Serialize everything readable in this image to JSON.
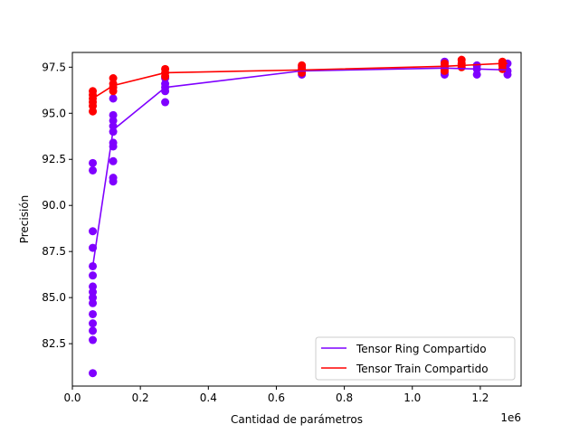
{
  "chart_data": {
    "type": "line",
    "xlabel": "Cantidad de parámetros",
    "ylabel": "Precisión",
    "x_offset_label": "1e6",
    "x_scale": 1000000,
    "xlim": [
      0,
      1320000
    ],
    "ylim": [
      80.2,
      98.3
    ],
    "x_ticks": [
      0,
      200000,
      400000,
      600000,
      800000,
      1000000,
      1200000
    ],
    "x_tick_labels": [
      "0.0",
      "0.2",
      "0.4",
      "0.6",
      "0.8",
      "1.0",
      "1.2"
    ],
    "y_ticks": [
      82.5,
      85.0,
      87.5,
      90.0,
      92.5,
      95.0,
      97.5
    ],
    "y_tick_labels": [
      "82.5",
      "85.0",
      "87.5",
      "90.0",
      "92.5",
      "95.0",
      "97.5"
    ],
    "grid": false,
    "legend_position": "lower-right",
    "series": [
      {
        "name": "Tensor Ring Compartido",
        "color": "#7f00ff",
        "line": [
          {
            "x": 60000,
            "y": 86.7
          },
          {
            "x": 120000,
            "y": 94.1
          },
          {
            "x": 273000,
            "y": 96.4
          },
          {
            "x": 675000,
            "y": 97.3
          },
          {
            "x": 1095000,
            "y": 97.45
          },
          {
            "x": 1190000,
            "y": 97.4
          },
          {
            "x": 1280000,
            "y": 97.35
          }
        ],
        "points": [
          {
            "x": 60000,
            "y": 92.3
          },
          {
            "x": 60000,
            "y": 91.9
          },
          {
            "x": 60000,
            "y": 88.6
          },
          {
            "x": 60000,
            "y": 87.7
          },
          {
            "x": 60000,
            "y": 86.7
          },
          {
            "x": 60000,
            "y": 86.2
          },
          {
            "x": 60000,
            "y": 85.6
          },
          {
            "x": 60000,
            "y": 85.3
          },
          {
            "x": 60000,
            "y": 85.0
          },
          {
            "x": 60000,
            "y": 84.7
          },
          {
            "x": 60000,
            "y": 84.1
          },
          {
            "x": 60000,
            "y": 83.6
          },
          {
            "x": 60000,
            "y": 83.2
          },
          {
            "x": 60000,
            "y": 82.7
          },
          {
            "x": 60000,
            "y": 80.9
          },
          {
            "x": 120000,
            "y": 95.8
          },
          {
            "x": 120000,
            "y": 94.9
          },
          {
            "x": 120000,
            "y": 94.6
          },
          {
            "x": 120000,
            "y": 94.3
          },
          {
            "x": 120000,
            "y": 94.0
          },
          {
            "x": 120000,
            "y": 93.4
          },
          {
            "x": 120000,
            "y": 93.2
          },
          {
            "x": 120000,
            "y": 92.4
          },
          {
            "x": 120000,
            "y": 91.5
          },
          {
            "x": 120000,
            "y": 91.3
          },
          {
            "x": 273000,
            "y": 96.9
          },
          {
            "x": 273000,
            "y": 96.6
          },
          {
            "x": 273000,
            "y": 96.4
          },
          {
            "x": 273000,
            "y": 96.2
          },
          {
            "x": 273000,
            "y": 95.6
          },
          {
            "x": 675000,
            "y": 97.5
          },
          {
            "x": 675000,
            "y": 97.3
          },
          {
            "x": 675000,
            "y": 97.1
          },
          {
            "x": 1095000,
            "y": 97.8
          },
          {
            "x": 1095000,
            "y": 97.6
          },
          {
            "x": 1095000,
            "y": 97.4
          },
          {
            "x": 1095000,
            "y": 97.2
          },
          {
            "x": 1095000,
            "y": 97.1
          },
          {
            "x": 1145000,
            "y": 97.6
          },
          {
            "x": 1190000,
            "y": 97.6
          },
          {
            "x": 1190000,
            "y": 97.4
          },
          {
            "x": 1190000,
            "y": 97.1
          },
          {
            "x": 1280000,
            "y": 97.7
          },
          {
            "x": 1280000,
            "y": 97.3
          },
          {
            "x": 1280000,
            "y": 97.1
          }
        ]
      },
      {
        "name": "Tensor Train Compartido",
        "color": "#ff0000",
        "line": [
          {
            "x": 60000,
            "y": 95.8
          },
          {
            "x": 120000,
            "y": 96.5
          },
          {
            "x": 273000,
            "y": 97.2
          },
          {
            "x": 675000,
            "y": 97.35
          },
          {
            "x": 1095000,
            "y": 97.55
          },
          {
            "x": 1265000,
            "y": 97.7
          },
          {
            "x": 1280000,
            "y": 97.7
          }
        ],
        "points": [
          {
            "x": 60000,
            "y": 96.2
          },
          {
            "x": 60000,
            "y": 96.0
          },
          {
            "x": 60000,
            "y": 95.8
          },
          {
            "x": 60000,
            "y": 95.6
          },
          {
            "x": 60000,
            "y": 95.4
          },
          {
            "x": 60000,
            "y": 95.1
          },
          {
            "x": 120000,
            "y": 96.9
          },
          {
            "x": 120000,
            "y": 96.6
          },
          {
            "x": 120000,
            "y": 96.4
          },
          {
            "x": 120000,
            "y": 96.2
          },
          {
            "x": 273000,
            "y": 97.4
          },
          {
            "x": 273000,
            "y": 97.2
          },
          {
            "x": 273000,
            "y": 97.0
          },
          {
            "x": 675000,
            "y": 97.6
          },
          {
            "x": 675000,
            "y": 97.4
          },
          {
            "x": 675000,
            "y": 97.2
          },
          {
            "x": 1095000,
            "y": 97.7
          },
          {
            "x": 1095000,
            "y": 97.5
          },
          {
            "x": 1095000,
            "y": 97.3
          },
          {
            "x": 1145000,
            "y": 97.9
          },
          {
            "x": 1145000,
            "y": 97.7
          },
          {
            "x": 1145000,
            "y": 97.5
          },
          {
            "x": 1265000,
            "y": 97.8
          },
          {
            "x": 1265000,
            "y": 97.6
          },
          {
            "x": 1265000,
            "y": 97.4
          }
        ]
      }
    ]
  }
}
